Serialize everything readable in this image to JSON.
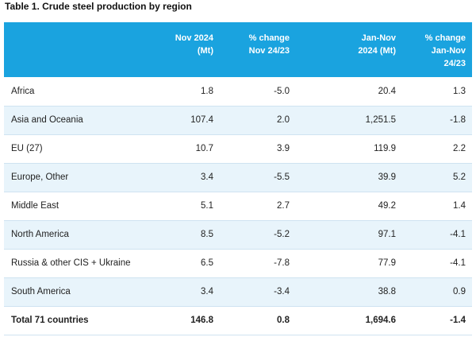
{
  "caption": "Table 1. Crude steel production by region",
  "headers": {
    "region": "",
    "nov": [
      "Nov 2024",
      "(Mt)"
    ],
    "nov_change": [
      "% change",
      "Nov 24/23"
    ],
    "ytd": [
      "Jan-Nov",
      "2024 (Mt)"
    ],
    "ytd_change": [
      "% change",
      "Jan-Nov",
      "24/23"
    ]
  },
  "rows": [
    {
      "region": "Africa",
      "nov": "1.8",
      "nov_change": "-5.0",
      "ytd": "20.4",
      "ytd_change": "1.3"
    },
    {
      "region": "Asia and Oceania",
      "nov": "107.4",
      "nov_change": "2.0",
      "ytd": "1,251.5",
      "ytd_change": "-1.8"
    },
    {
      "region": "EU (27)",
      "nov": "10.7",
      "nov_change": "3.9",
      "ytd": "119.9",
      "ytd_change": "2.2"
    },
    {
      "region": "Europe, Other",
      "nov": "3.4",
      "nov_change": "-5.5",
      "ytd": "39.9",
      "ytd_change": "5.2"
    },
    {
      "region": "Middle East",
      "nov": "5.1",
      "nov_change": "2.7",
      "ytd": "49.2",
      "ytd_change": "1.4"
    },
    {
      "region": "North America",
      "nov": "8.5",
      "nov_change": "-5.2",
      "ytd": "97.1",
      "ytd_change": "-4.1"
    },
    {
      "region": "Russia & other CIS + Ukraine",
      "nov": "6.5",
      "nov_change": "-7.8",
      "ytd": "77.9",
      "ytd_change": "-4.1"
    },
    {
      "region": "South America",
      "nov": "3.4",
      "nov_change": "-3.4",
      "ytd": "38.8",
      "ytd_change": "0.9"
    }
  ],
  "total": {
    "region": "Total 71 countries",
    "nov": "146.8",
    "nov_change": "0.8",
    "ytd": "1,694.6",
    "ytd_change": "-1.4"
  },
  "colors": {
    "header_bg": "#1aa3df",
    "stripe_bg": "#e8f4fb"
  }
}
